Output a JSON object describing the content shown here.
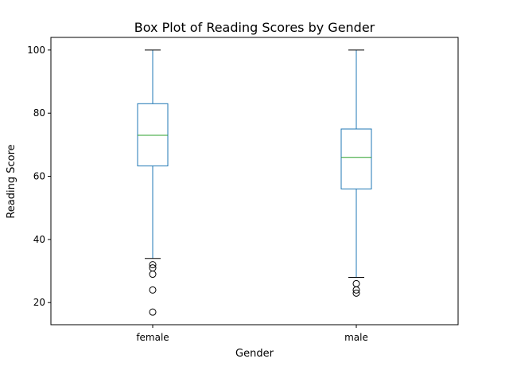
{
  "chart_data": {
    "type": "boxplot",
    "title": "Box Plot of Reading Scores by Gender",
    "xlabel": "Gender",
    "ylabel": "Reading Score",
    "categories": [
      "female",
      "male"
    ],
    "ylim": [
      13,
      104
    ],
    "yticks": [
      "20",
      "40",
      "60",
      "80",
      "100"
    ],
    "grid": false,
    "boxes": [
      {
        "category": "female",
        "whisker_low": 34,
        "q1": 63.3,
        "median": 73,
        "q3": 83,
        "whisker_high": 100,
        "outliers": [
          32,
          31,
          29,
          24,
          17
        ]
      },
      {
        "category": "male",
        "whisker_low": 28,
        "q1": 56,
        "median": 66,
        "q3": 75,
        "whisker_high": 100,
        "outliers": [
          26,
          24,
          23
        ]
      }
    ],
    "colors": {
      "box": "#1f77b4",
      "median": "#2ca02c",
      "whisker_cap": "#000000",
      "outlier": "#000000"
    }
  }
}
